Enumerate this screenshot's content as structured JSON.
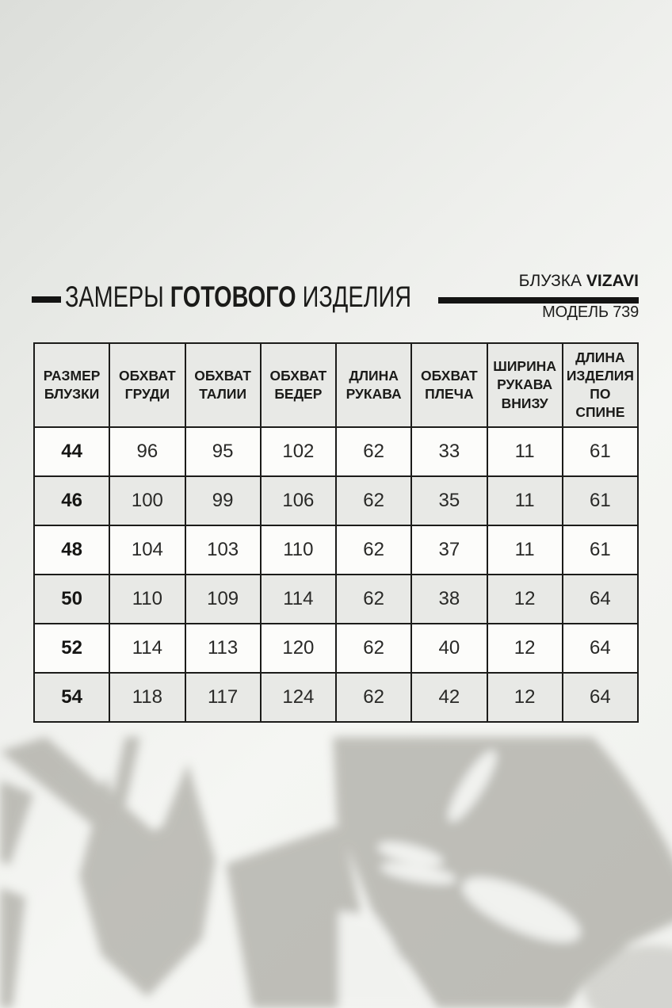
{
  "header": {
    "title_regular1": "ЗАМЕРЫ",
    "title_bold": "ГОТОВОГО",
    "title_regular2": "ИЗДЕЛИЯ",
    "brand_regular": "БЛУЗКА",
    "brand_bold": "VIZAVI",
    "model": "МОДЕЛЬ 739"
  },
  "table": {
    "headers": [
      {
        "key": "blouse-size",
        "label": "РАЗМЕР\nБЛУЗКИ"
      },
      {
        "key": "bust",
        "label": "ОБХВАТ\nГРУДИ"
      },
      {
        "key": "waist",
        "label": "ОБХВАТ\nТАЛИИ"
      },
      {
        "key": "hips",
        "label": "ОБХВАТ\nБЕДЕР"
      },
      {
        "key": "sleeve-length",
        "label": "ДЛИНА\nРУКАВА"
      },
      {
        "key": "shoulder",
        "label": "ОБХВАТ\nПЛЕЧА"
      },
      {
        "key": "sleeve-width-bottom",
        "label": "ШИРИНА\nРУКАВА\nВНИЗУ"
      },
      {
        "key": "back-length",
        "label": "ДЛИНА\nИЗДЕЛИЯ\nПО\nСПИНЕ"
      }
    ],
    "rows": [
      [
        "44",
        "96",
        "95",
        "102",
        "62",
        "33",
        "11",
        "61"
      ],
      [
        "46",
        "100",
        "99",
        "106",
        "62",
        "35",
        "11",
        "61"
      ],
      [
        "48",
        "104",
        "103",
        "110",
        "62",
        "37",
        "11",
        "61"
      ],
      [
        "50",
        "110",
        "109",
        "114",
        "62",
        "38",
        "12",
        "64"
      ],
      [
        "52",
        "114",
        "113",
        "120",
        "62",
        "40",
        "12",
        "64"
      ],
      [
        "54",
        "118",
        "117",
        "124",
        "62",
        "42",
        "12",
        "64"
      ]
    ]
  },
  "colors": {
    "text": "#1c1c1a",
    "table_border": "#1c1c1a",
    "row_light": "#fcfcfa",
    "row_shaded": "#e8e9e6",
    "rule_black": "#141413",
    "leaf_shadow": "#8a887f"
  },
  "decoration": {
    "plant_shadow": "blurred monstera leaf shadows, bottom of image",
    "light": "soft diagonal window light, darker top-left corner"
  }
}
